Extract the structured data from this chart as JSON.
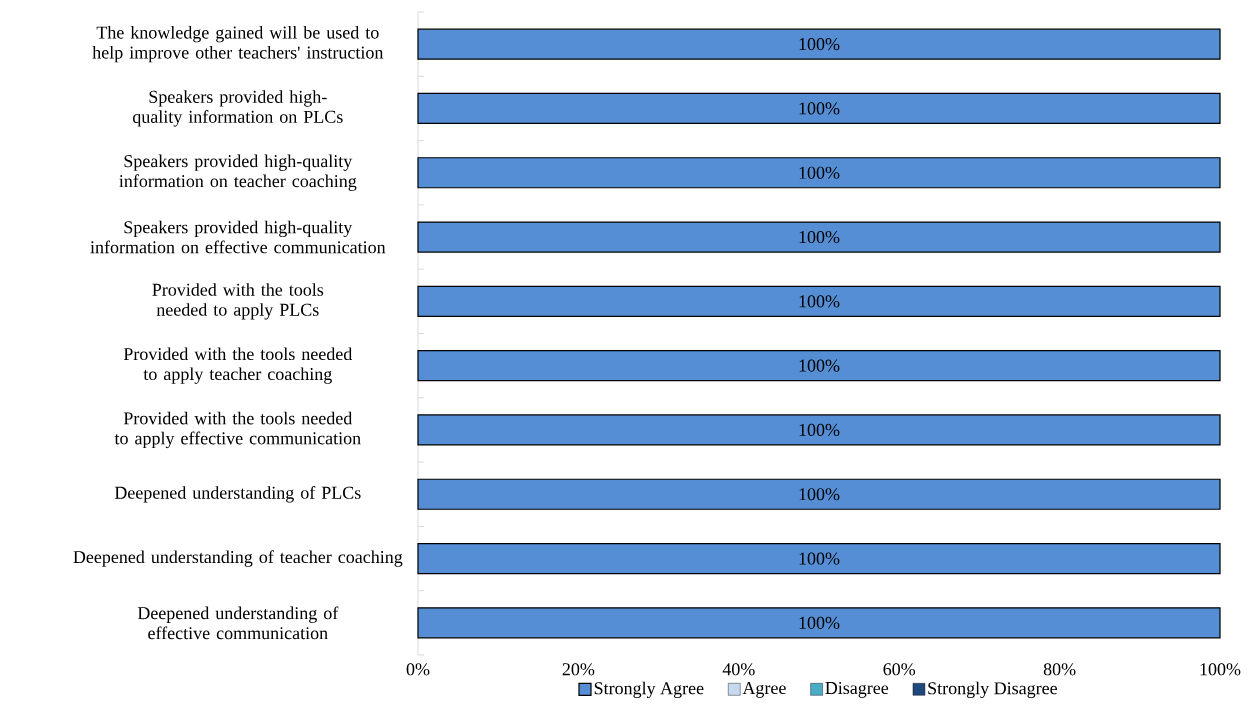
{
  "chart_data": {
    "type": "bar",
    "orientation": "horizontal",
    "stacked": true,
    "legend": "bottom",
    "grid": false,
    "categories": [
      "The knowledge gained will be used to help improve other teachers' instruction",
      "Speakers provided high-quality information on PLCs",
      "Speakers provided high-quality information on teacher coaching",
      "Speakers provided high-quality information on effective communication",
      "Provided with the tools needed to apply PLCs",
      "Provided with the tools needed to apply teacher coaching",
      "Provided with the tools needed to apply effective communication",
      "Deepened understanding of PLCs",
      "Deepened understanding of teacher coaching",
      "Deepened understanding of effective communication"
    ],
    "series": [
      {
        "name": "Strongly Agree",
        "color": "#558ed5",
        "values": [
          100,
          100,
          100,
          100,
          100,
          100,
          100,
          100,
          100,
          100
        ],
        "value_labels": [
          "100%",
          "100%",
          "100%",
          "100%",
          "100%",
          "100%",
          "100%",
          "100%",
          "100%",
          "100%"
        ]
      },
      {
        "name": "Agree",
        "color": "#c6d9f1",
        "values": [
          0,
          0,
          0,
          0,
          0,
          0,
          0,
          0,
          0,
          0
        ]
      },
      {
        "name": "Disagree",
        "color": "#4bacc6",
        "values": [
          0,
          0,
          0,
          0,
          0,
          0,
          0,
          0,
          0,
          0
        ]
      },
      {
        "name": "Strongly Disagree",
        "color": "#1f497d",
        "values": [
          0,
          0,
          0,
          0,
          0,
          0,
          0,
          0,
          0,
          0
        ]
      }
    ],
    "xlim": [
      0,
      100
    ],
    "xticks": [
      {
        "value": 0,
        "label": "0%"
      },
      {
        "value": 20,
        "label": "20%"
      },
      {
        "value": 40,
        "label": "40%"
      },
      {
        "value": 60,
        "label": "60%"
      },
      {
        "value": 80,
        "label": "80%"
      },
      {
        "value": 100,
        "label": "100%"
      }
    ]
  }
}
